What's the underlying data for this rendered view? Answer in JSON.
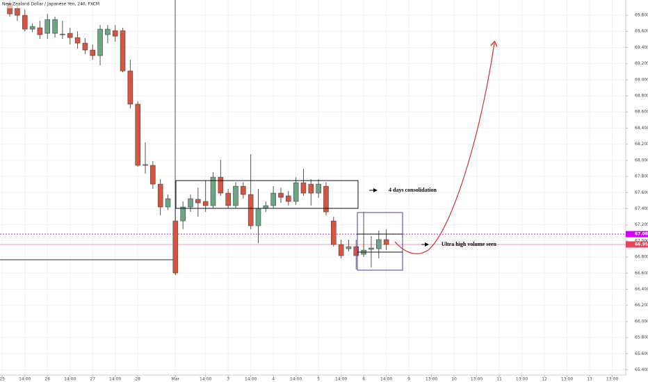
{
  "chart_data": {
    "type": "candlestick",
    "title": "New Zealand Dollar / Japanese Yen, 240, FXCM",
    "up_color": "#6ba583",
    "down_color": "#d75442",
    "grid": true,
    "candles": {
      "x": [
        1,
        2,
        3,
        4,
        5,
        6,
        7,
        8,
        9,
        10,
        11,
        12,
        13,
        14,
        15,
        16,
        17,
        18,
        19,
        20,
        21,
        22,
        23,
        24,
        25,
        26,
        27,
        28,
        29,
        30,
        31,
        32,
        33,
        34,
        35,
        36,
        37,
        38,
        39,
        40,
        41,
        42,
        43,
        44,
        45,
        46,
        47,
        48,
        49,
        50,
        51
      ],
      "open": [
        69.947,
        69.886,
        69.8,
        69.628,
        69.645,
        69.576,
        69.576,
        69.567,
        69.576,
        69.524,
        69.455,
        69.369,
        69.3,
        69.559,
        69.61,
        69.61,
        69.11,
        68.697,
        67.947,
        67.938,
        67.705,
        67.421,
        67.248,
        67.248,
        67.421,
        67.516,
        67.49,
        67.438,
        67.791,
        67.593,
        67.438,
        67.679,
        67.576,
        67.188,
        67.403,
        67.438,
        67.593,
        67.559,
        67.49,
        67.722,
        67.705,
        67.593,
        67.679,
        67.248,
        66.955,
        66.903,
        66.929,
        66.834,
        66.895,
        66.903,
        67.016
      ],
      "high": [
        69.99,
        69.921,
        69.869,
        69.697,
        69.731,
        69.817,
        69.783,
        69.731,
        69.645,
        69.602,
        69.516,
        69.438,
        69.679,
        69.679,
        69.679,
        69.645,
        69.248,
        68.731,
        68.222,
        67.99,
        67.766,
        67.576,
        67.49,
        67.49,
        67.576,
        67.662,
        67.748,
        67.852,
        68.007,
        67.645,
        67.731,
        67.731,
        68.076,
        67.645,
        67.49,
        67.679,
        67.662,
        67.619,
        67.791,
        67.895,
        67.766,
        67.766,
        67.731,
        67.3,
        67.016,
        67.016,
        67.016,
        67.36,
        67.059,
        67.128,
        67.145
      ],
      "low": [
        69.783,
        69.731,
        69.602,
        69.593,
        69.507,
        69.507,
        69.524,
        69.507,
        69.438,
        69.386,
        69.317,
        69.248,
        69.179,
        69.455,
        69.472,
        69.093,
        68.645,
        67.921,
        67.834,
        67.645,
        67.317,
        67.386,
        66.576,
        67.145,
        67.36,
        67.3,
        67.36,
        67.403,
        67.559,
        67.403,
        67.403,
        67.524,
        67.145,
        66.972,
        67.36,
        67.403,
        67.472,
        67.438,
        67.446,
        67.559,
        67.438,
        67.533,
        67.317,
        66.929,
        66.783,
        66.869,
        66.645,
        66.8,
        66.671,
        66.783,
        66.886
      ],
      "close": [
        69.817,
        69.8,
        69.628,
        69.662,
        69.559,
        69.748,
        69.748,
        69.559,
        69.524,
        69.455,
        69.369,
        69.3,
        69.628,
        69.628,
        69.541,
        69.11,
        68.697,
        67.938,
        67.938,
        67.705,
        67.421,
        67.524,
        66.602,
        67.421,
        67.524,
        67.472,
        67.438,
        67.791,
        67.593,
        67.438,
        67.679,
        67.576,
        67.188,
        67.403,
        67.438,
        67.593,
        67.541,
        67.49,
        67.722,
        67.593,
        67.593,
        67.705,
        67.36,
        66.955,
        66.817,
        66.929,
        66.817,
        66.886,
        66.912,
        67.016,
        66.955
      ]
    },
    "xlim": [
      -0.3,
      82.8
    ],
    "xticks": [
      {
        "value": 0,
        "label": "25"
      },
      {
        "value": 3,
        "label": "14:00"
      },
      {
        "value": 6,
        "label": "26"
      },
      {
        "value": 9,
        "label": "14:00"
      },
      {
        "value": 12,
        "label": "27"
      },
      {
        "value": 15,
        "label": "14:00"
      },
      {
        "value": 18,
        "label": "28"
      },
      {
        "value": 23,
        "label": "Mar"
      },
      {
        "value": 27,
        "label": "14:00"
      },
      {
        "value": 30,
        "label": "3"
      },
      {
        "value": 33,
        "label": "14:00"
      },
      {
        "value": 36,
        "label": "4"
      },
      {
        "value": 39,
        "label": "14:00"
      },
      {
        "value": 42,
        "label": "5"
      },
      {
        "value": 45,
        "label": "14:00"
      },
      {
        "value": 48,
        "label": "6"
      },
      {
        "value": 51,
        "label": "14:00"
      },
      {
        "value": 54,
        "label": "9"
      },
      {
        "value": 57,
        "label": "13:00"
      },
      {
        "value": 60,
        "label": "10"
      },
      {
        "value": 63,
        "label": "13:00"
      },
      {
        "value": 66,
        "label": "11"
      },
      {
        "value": 69,
        "label": "13:00"
      },
      {
        "value": 72,
        "label": "12"
      },
      {
        "value": 75,
        "label": "13:00"
      },
      {
        "value": 78,
        "label": "13"
      },
      {
        "value": 81,
        "label": "13:00"
      }
    ],
    "ylim": [
      65.335,
      69.99
    ],
    "yticks": [
      {
        "value": 69.8,
        "label": "69.800"
      },
      {
        "value": 69.6,
        "label": "69.600"
      },
      {
        "value": 69.4,
        "label": "69.400"
      },
      {
        "value": 69.2,
        "label": "69.200"
      },
      {
        "value": 69.0,
        "label": "69.000"
      },
      {
        "value": 68.8,
        "label": "68.800"
      },
      {
        "value": 68.6,
        "label": "68.600"
      },
      {
        "value": 68.4,
        "label": "68.400"
      },
      {
        "value": 68.2,
        "label": "68.200"
      },
      {
        "value": 68.0,
        "label": "68.000"
      },
      {
        "value": 67.8,
        "label": "67.800"
      },
      {
        "value": 67.6,
        "label": "67.600"
      },
      {
        "value": 67.4,
        "label": "67.400"
      },
      {
        "value": 67.2,
        "label": "67.200"
      },
      {
        "value": 67.0,
        "label": "67.000"
      },
      {
        "value": 66.8,
        "label": "66.800"
      },
      {
        "value": 66.6,
        "label": "66.600"
      },
      {
        "value": 66.4,
        "label": "66.400"
      },
      {
        "value": 66.2,
        "label": "66.200"
      },
      {
        "value": 66.0,
        "label": "66.000"
      },
      {
        "value": 65.8,
        "label": "65.800"
      },
      {
        "value": 65.6,
        "label": "65.600"
      },
      {
        "value": 65.4,
        "label": "65.400"
      }
    ],
    "price_lines": [
      {
        "value": 67.084,
        "label": "67.084",
        "color": "#d500f9",
        "dashed": true
      },
      {
        "value": 66.956,
        "label": "66.956",
        "color": "#e8445a",
        "dashed": false
      }
    ],
    "annotations": [
      {
        "text": "4 days consolidation"
      },
      {
        "text": "Ultra high volume seen"
      }
    ]
  }
}
